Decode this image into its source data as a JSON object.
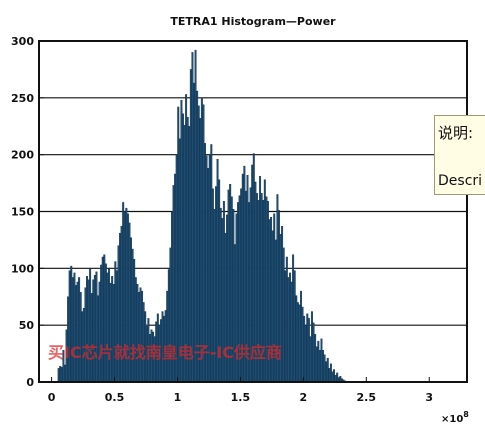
{
  "chart_data": {
    "type": "bar",
    "title": "TETRA1 Histogram—Power",
    "x_exponent": "×10",
    "x_exponent_power": "8",
    "xlim": [
      -0.1,
      3.3
    ],
    "ylim": [
      0,
      300
    ],
    "xticks": [
      0,
      0.5,
      1,
      1.5,
      2,
      2.5,
      3
    ],
    "xtick_labels": [
      "0",
      "0.5",
      "1",
      "1.5",
      "2",
      "2.5",
      "3"
    ],
    "yticks": [
      0,
      50,
      100,
      150,
      200,
      250,
      300
    ],
    "ytick_labels": [
      "0",
      "50",
      "100",
      "150",
      "200",
      "250",
      "300"
    ],
    "grid": true,
    "bar_color": "#1d4f76",
    "bar_edge_color": "#0e2438",
    "bin_start": 0.05,
    "bin_width": 0.0125,
    "values": [
      12,
      14,
      13,
      28,
      15,
      46,
      75,
      98,
      102,
      92,
      96,
      85,
      88,
      92,
      79,
      62,
      65,
      83,
      93,
      90,
      100,
      78,
      90,
      94,
      97,
      76,
      88,
      103,
      110,
      112,
      104,
      96,
      100,
      87,
      93,
      86,
      106,
      98,
      120,
      131,
      137,
      158,
      150,
      153,
      148,
      140,
      127,
      117,
      108,
      92,
      86,
      79,
      83,
      80,
      70,
      62,
      49,
      56,
      42,
      46,
      44,
      40,
      53,
      60,
      50,
      55,
      62,
      58,
      63,
      80,
      99,
      118,
      150,
      173,
      183,
      200,
      242,
      214,
      248,
      236,
      226,
      253,
      233,
      225,
      275,
      290,
      263,
      292,
      256,
      243,
      232,
      250,
      244,
      210,
      199,
      188,
      200,
      209,
      170,
      152,
      172,
      196,
      178,
      153,
      144,
      159,
      131,
      147,
      169,
      174,
      163,
      152,
      121,
      148,
      158,
      164,
      170,
      183,
      190,
      168,
      182,
      158,
      171,
      191,
      201,
      176,
      166,
      160,
      181,
      166,
      160,
      178,
      163,
      159,
      143,
      145,
      133,
      148,
      125,
      165,
      151,
      130,
      137,
      118,
      98,
      110,
      92,
      96,
      88,
      112,
      98,
      76,
      70,
      68,
      80,
      66,
      58,
      50,
      60,
      56,
      40,
      62,
      52,
      42,
      31,
      36,
      28,
      38,
      28,
      24,
      18,
      21,
      12,
      16,
      9,
      11,
      6,
      8,
      4,
      5,
      3,
      2,
      1
    ]
  },
  "watermark": "买IC芯片就找南皇电子-IC供应商",
  "tooltip": {
    "line1": "说明: ",
    "line2": "Descri"
  }
}
